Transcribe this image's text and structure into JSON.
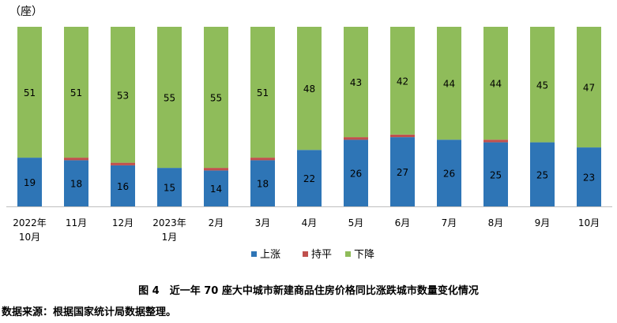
{
  "chart_data": {
    "type": "bar",
    "stacked": true,
    "unit_label": "（座）",
    "categories": [
      [
        "2022年",
        "10月"
      ],
      [
        "11月"
      ],
      [
        "12月"
      ],
      [
        "2023年",
        "1月"
      ],
      [
        "2月"
      ],
      [
        "3月"
      ],
      [
        "4月"
      ],
      [
        "5月"
      ],
      [
        "6月"
      ],
      [
        "7月"
      ],
      [
        "8月"
      ],
      [
        "9月"
      ],
      [
        "10月"
      ]
    ],
    "series": [
      {
        "name": "上涨",
        "color": "#2e75b6",
        "values": [
          19,
          18,
          16,
          15,
          14,
          18,
          22,
          26,
          27,
          26,
          25,
          25,
          23
        ]
      },
      {
        "name": "持平",
        "color": "#c0504d",
        "values": [
          0,
          1,
          1,
          0,
          1,
          1,
          0,
          1,
          1,
          0,
          1,
          0,
          0
        ]
      },
      {
        "name": "下降",
        "color": "#8fbc5a",
        "values": [
          51,
          51,
          53,
          55,
          55,
          51,
          48,
          43,
          42,
          44,
          44,
          45,
          47
        ]
      }
    ],
    "ylim": [
      0,
      70
    ],
    "legend_position": "bottom"
  },
  "caption": "图 4　近一年 70 座大中城市新建商品住房价格同比涨跌城市数量变化情况",
  "source": "数据来源：根据国家统计局数据整理。"
}
